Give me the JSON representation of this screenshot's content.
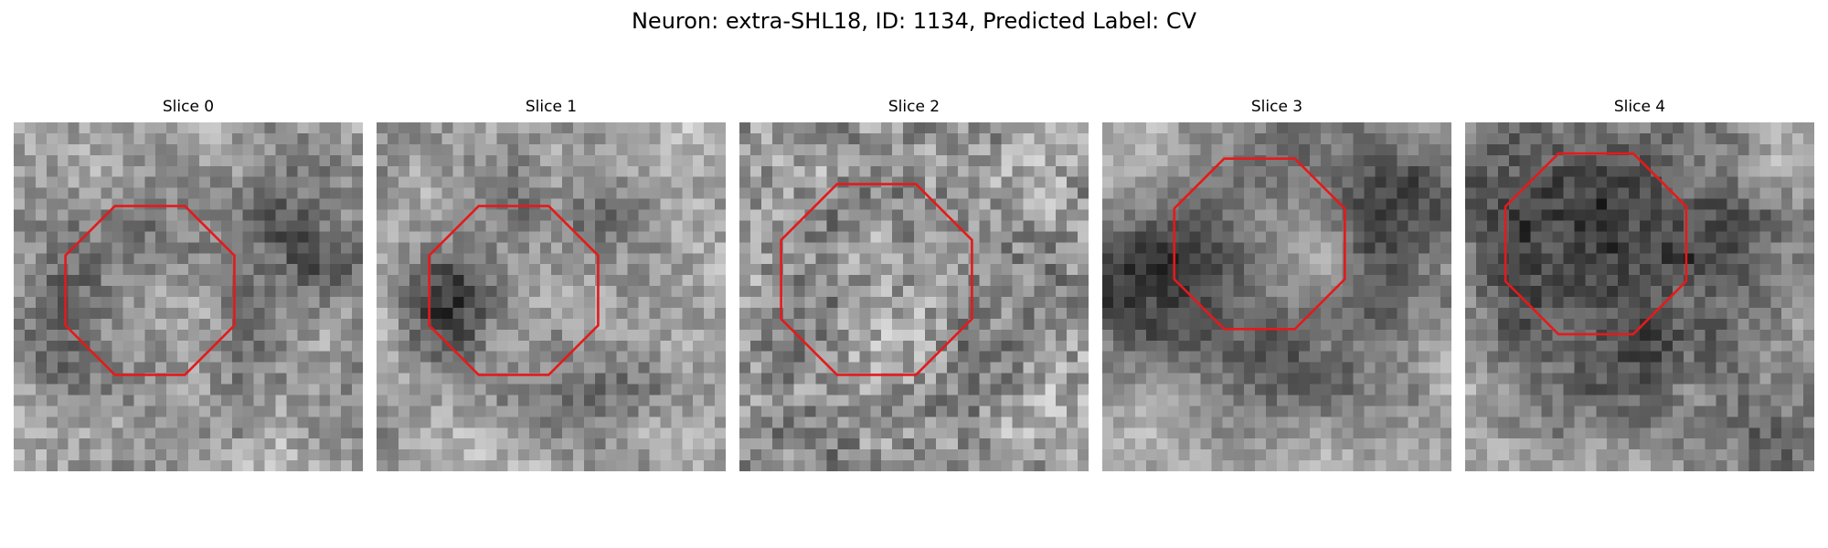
{
  "figure": {
    "title": "Neuron: extra-SHL18, ID: 1134, Predicted Label: CV"
  },
  "panels": [
    {
      "title": "Slice 0"
    },
    {
      "title": "Slice 1"
    },
    {
      "title": "Slice 2"
    },
    {
      "title": "Slice 3"
    },
    {
      "title": "Slice 4"
    }
  ],
  "colors": {
    "outline": "#e41a1c",
    "background": "#ffffff"
  }
}
